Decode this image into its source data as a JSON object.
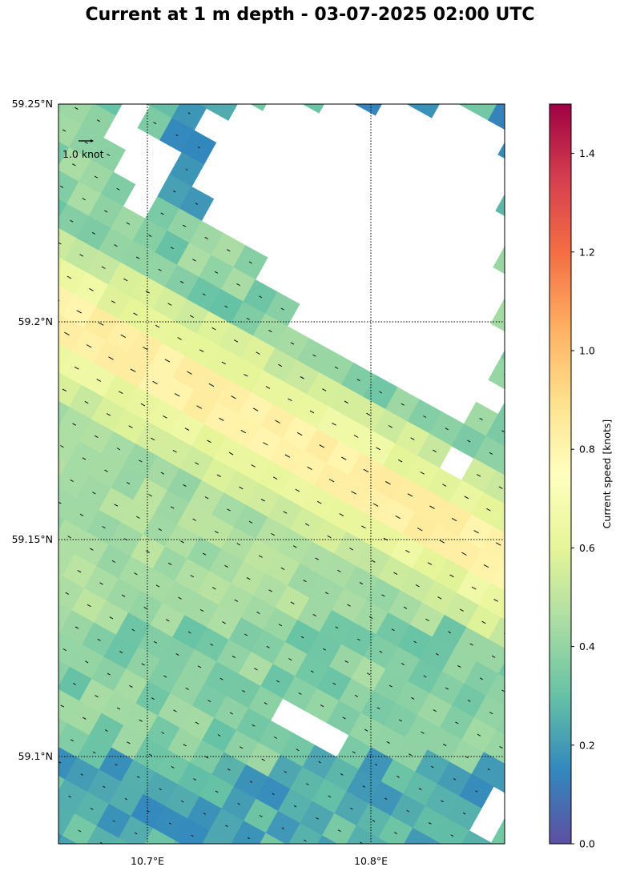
{
  "chart_data": {
    "type": "heatmap",
    "title": "Current at 1 m depth - 03-07-2025 02:00 UTC",
    "x_ticks": [
      "10.7°E",
      "10.8°E"
    ],
    "y_ticks": [
      "59.25°N",
      "59.2°N",
      "59.15°N",
      "59.1°N"
    ],
    "lon_range": [
      10.66,
      10.86
    ],
    "lat_range": [
      59.08,
      59.25
    ],
    "grid": "dotted at tick positions",
    "colorbar": {
      "label": "Current speed [knots]",
      "range": [
        0.0,
        1.5
      ],
      "ticks": [
        "0.0",
        "0.2",
        "0.4",
        "0.6",
        "0.8",
        "1.0",
        "1.2",
        "1.4"
      ],
      "colormap": "Spectral_r",
      "colors": [
        "#5e4fa2",
        "#3288bd",
        "#66c2a5",
        "#abdda4",
        "#e6f598",
        "#ffffbf",
        "#fee08b",
        "#fdae61",
        "#f46d43",
        "#d53e4f",
        "#9e0142"
      ]
    },
    "quiver_key": "1.0 knot",
    "speed_field_description_note": "",
    "speed_zones": [
      {
        "zone": "northwest jet band",
        "speed_knots": 0.7
      },
      {
        "zone": "jet core",
        "speed_knots": 0.9
      },
      {
        "zone": "central basin",
        "speed_knots": 0.45
      },
      {
        "zone": "south basin",
        "speed_knots": 0.35
      },
      {
        "zone": "southern coast",
        "speed_knots": 0.15
      },
      {
        "zone": "northern islands",
        "speed_knots": 0.1
      }
    ]
  }
}
